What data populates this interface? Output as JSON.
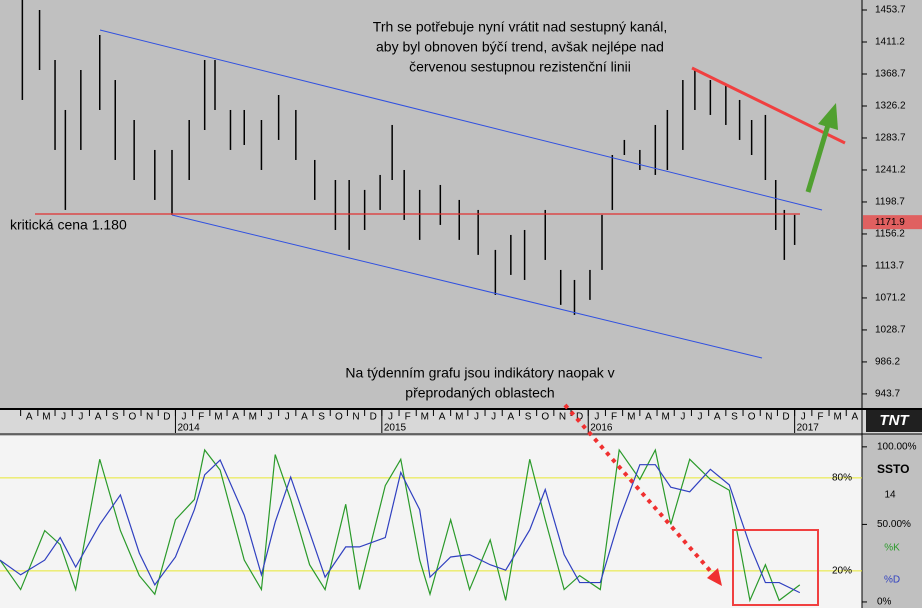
{
  "chart_data": [
    {
      "type": "hilo",
      "x": [
        0.1,
        1.1,
        2.0,
        2.6,
        3.5,
        4.6,
        5.5,
        6.6,
        7.8,
        8.8,
        9.8,
        10.7,
        11.3,
        12.2,
        13.0,
        14.0,
        15.0,
        16.0,
        17.1,
        18.3,
        19.1,
        20.0,
        20.9,
        21.6,
        22.3,
        23.2,
        24.4,
        25.5,
        26.6,
        27.6,
        28.5,
        29.3,
        30.5,
        31.4,
        32.2,
        33.1,
        33.8,
        34.4,
        35.1,
        36.0,
        36.9,
        37.6,
        38.5,
        39.2,
        40.1,
        41.0,
        41.8,
        42.5,
        43.3,
        43.9,
        44.4,
        45.0
      ],
      "high": [
        1467,
        1453.7,
        1387.3,
        1320.9,
        1374,
        1420.5,
        1360.7,
        1307.6,
        1267.8,
        1267.8,
        1307.6,
        1387.3,
        1387.3,
        1320.9,
        1320.9,
        1307.6,
        1340.8,
        1320.9,
        1254.5,
        1227.9,
        1227.9,
        1214.7,
        1234.6,
        1301,
        1241.2,
        1214.7,
        1221.3,
        1201.4,
        1188.1,
        1135,
        1154.9,
        1161.5,
        1188.1,
        1108.4,
        1095.1,
        1108.4,
        1181.5,
        1261.1,
        1281.1,
        1267.8,
        1301,
        1320.9,
        1360.7,
        1374,
        1360.7,
        1354.1,
        1334.2,
        1307.6,
        1314.3,
        1227.9,
        1188.1,
        1181.5
      ],
      "low": [
        1334.2,
        1374,
        1267.8,
        1188.1,
        1267.8,
        1320.9,
        1254.5,
        1227.9,
        1201.4,
        1181.5,
        1227.9,
        1294.3,
        1320.9,
        1267.8,
        1274.4,
        1241.2,
        1281.1,
        1254.5,
        1201.4,
        1161.5,
        1135,
        1161.5,
        1188.1,
        1227.9,
        1174.8,
        1148.3,
        1168.2,
        1148.3,
        1128.4,
        1075.2,
        1101.8,
        1095.1,
        1121.7,
        1062,
        1048.7,
        1068.6,
        1108.4,
        1188.1,
        1261.1,
        1241.2,
        1234.6,
        1241.2,
        1267.8,
        1320.9,
        1314.3,
        1301,
        1281.1,
        1261.1,
        1227.9,
        1161.5,
        1121.7,
        1141.6
      ],
      "color": "#000000",
      "xlim": [
        -1.2,
        48.8
      ],
      "xticks": [
        {
          "value": 0.5,
          "label": "A"
        },
        {
          "value": 1.5,
          "label": "M"
        },
        {
          "value": 2.5,
          "label": "J"
        },
        {
          "value": 3.5,
          "label": "J"
        },
        {
          "value": 4.5,
          "label": "A"
        },
        {
          "value": 5.5,
          "label": "S"
        },
        {
          "value": 6.5,
          "label": "O"
        },
        {
          "value": 7.5,
          "label": "N"
        },
        {
          "value": 8.5,
          "label": "D"
        },
        {
          "value": 9.5,
          "label": "J"
        },
        {
          "value": 10.5,
          "label": "F"
        },
        {
          "value": 11.5,
          "label": "M"
        },
        {
          "value": 12.5,
          "label": "A"
        },
        {
          "value": 13.5,
          "label": "M"
        },
        {
          "value": 14.5,
          "label": "J"
        },
        {
          "value": 15.5,
          "label": "J"
        },
        {
          "value": 16.5,
          "label": "A"
        },
        {
          "value": 17.5,
          "label": "S"
        },
        {
          "value": 18.5,
          "label": "O"
        },
        {
          "value": 19.5,
          "label": "N"
        },
        {
          "value": 20.5,
          "label": "D"
        },
        {
          "value": 21.5,
          "label": "J"
        },
        {
          "value": 22.5,
          "label": "F"
        },
        {
          "value": 23.5,
          "label": "M"
        },
        {
          "value": 24.5,
          "label": "A"
        },
        {
          "value": 25.5,
          "label": "M"
        },
        {
          "value": 26.5,
          "label": "J"
        },
        {
          "value": 27.5,
          "label": "J"
        },
        {
          "value": 28.5,
          "label": "A"
        },
        {
          "value": 29.5,
          "label": "S"
        },
        {
          "value": 30.5,
          "label": "O"
        },
        {
          "value": 31.5,
          "label": "N"
        },
        {
          "value": 32.5,
          "label": "D"
        },
        {
          "value": 33.5,
          "label": "J"
        },
        {
          "value": 34.5,
          "label": "F"
        },
        {
          "value": 35.5,
          "label": "M"
        },
        {
          "value": 36.5,
          "label": "A"
        },
        {
          "value": 37.5,
          "label": "M"
        },
        {
          "value": 38.5,
          "label": "J"
        },
        {
          "value": 39.5,
          "label": "J"
        },
        {
          "value": 40.5,
          "label": "A"
        },
        {
          "value": 41.5,
          "label": "S"
        },
        {
          "value": 42.5,
          "label": "O"
        },
        {
          "value": 43.5,
          "label": "N"
        },
        {
          "value": 44.5,
          "label": "D"
        },
        {
          "value": 45.5,
          "label": "J"
        },
        {
          "value": 46.5,
          "label": "F"
        },
        {
          "value": 47.5,
          "label": "M"
        },
        {
          "value": 48.5,
          "label": "A"
        }
      ],
      "year_ticks": [
        {
          "value": 9,
          "label": "2014"
        },
        {
          "value": 21,
          "label": "2015"
        },
        {
          "value": 33,
          "label": "2016"
        },
        {
          "value": 45,
          "label": "2017"
        }
      ],
      "ylim": [
        925,
        1467
      ],
      "yticks": [
        943.7,
        986.2,
        1028.7,
        1071.2,
        1113.7,
        1156.2,
        1198.7,
        1241.2,
        1283.7,
        1326.2,
        1368.7,
        1411.2,
        1453.7
      ],
      "last_price": 1171.9,
      "logo": "TNT",
      "annotation_top": [
        "Trh se potřebuje nyní vrátit nad sestupný kanál,",
        "aby byl obnoven býčí trend, avšak nejlépe nad",
        "červenou sestupnou rezistenční linii"
      ],
      "annotation_level": "kritická cena 1.180",
      "annotation_bottom": [
        "Na týdenním grafu jsou indikátory naopak v",
        "přeprodaných oblastech"
      ]
    },
    {
      "type": "line",
      "indicator": "SSTO",
      "period": 14,
      "x": [
        -1.2,
        0.0,
        1.4,
        2.3,
        3.2,
        4.6,
        5.8,
        6.9,
        7.8,
        9.0,
        10.1,
        10.7,
        11.6,
        13.0,
        14.0,
        14.8,
        15.7,
        16.8,
        17.7,
        18.9,
        19.7,
        21.2,
        22.1,
        23.2,
        23.8,
        25.0,
        26.1,
        27.3,
        28.2,
        29.6,
        30.5,
        31.6,
        32.5,
        33.7,
        34.8,
        36.0,
        36.9,
        37.8,
        38.9,
        40.1,
        41.2,
        42.4,
        43.3,
        44.1,
        45.3
      ],
      "series": [
        {
          "name": "%K",
          "color": "#2a9a2a",
          "values": [
            27,
            8,
            46,
            37,
            8,
            92,
            46,
            17,
            5,
            53,
            66,
            98,
            85,
            27,
            8,
            95,
            66,
            24,
            8,
            63,
            8,
            75,
            92,
            27,
            5,
            53,
            8,
            40,
            1,
            92,
            53,
            8,
            17,
            8,
            98,
            79,
            98,
            50,
            92,
            79,
            72,
            1,
            24,
            1,
            11
          ]
        },
        {
          "name": "%D",
          "color": "#3040c0",
          "values": [
            27,
            17.5,
            27,
            41.5,
            22.5,
            50,
            69,
            31.5,
            11,
            29,
            59.5,
            82,
            91.5,
            56,
            17.5,
            51.5,
            80.5,
            45,
            16,
            35.5,
            35.5,
            41.5,
            83.5,
            59.5,
            16,
            29,
            30.5,
            24,
            20.5,
            46.5,
            72.5,
            30.5,
            12.5,
            12.5,
            53,
            88.5,
            88.5,
            74,
            71,
            85.5,
            75.5,
            36.5,
            12.5,
            12.5,
            6
          ]
        }
      ],
      "ylim": [
        -3.9,
        107
      ],
      "yticks": [
        {
          "value": 100,
          "label": "100.00%"
        },
        {
          "value": 50,
          "label": "50.00%"
        },
        {
          "value": 0,
          "label": "0%"
        }
      ],
      "levels": [
        {
          "value": 80,
          "label": "80%"
        },
        {
          "value": 20,
          "label": "20%"
        }
      ],
      "level_color": "#e8e830"
    }
  ]
}
